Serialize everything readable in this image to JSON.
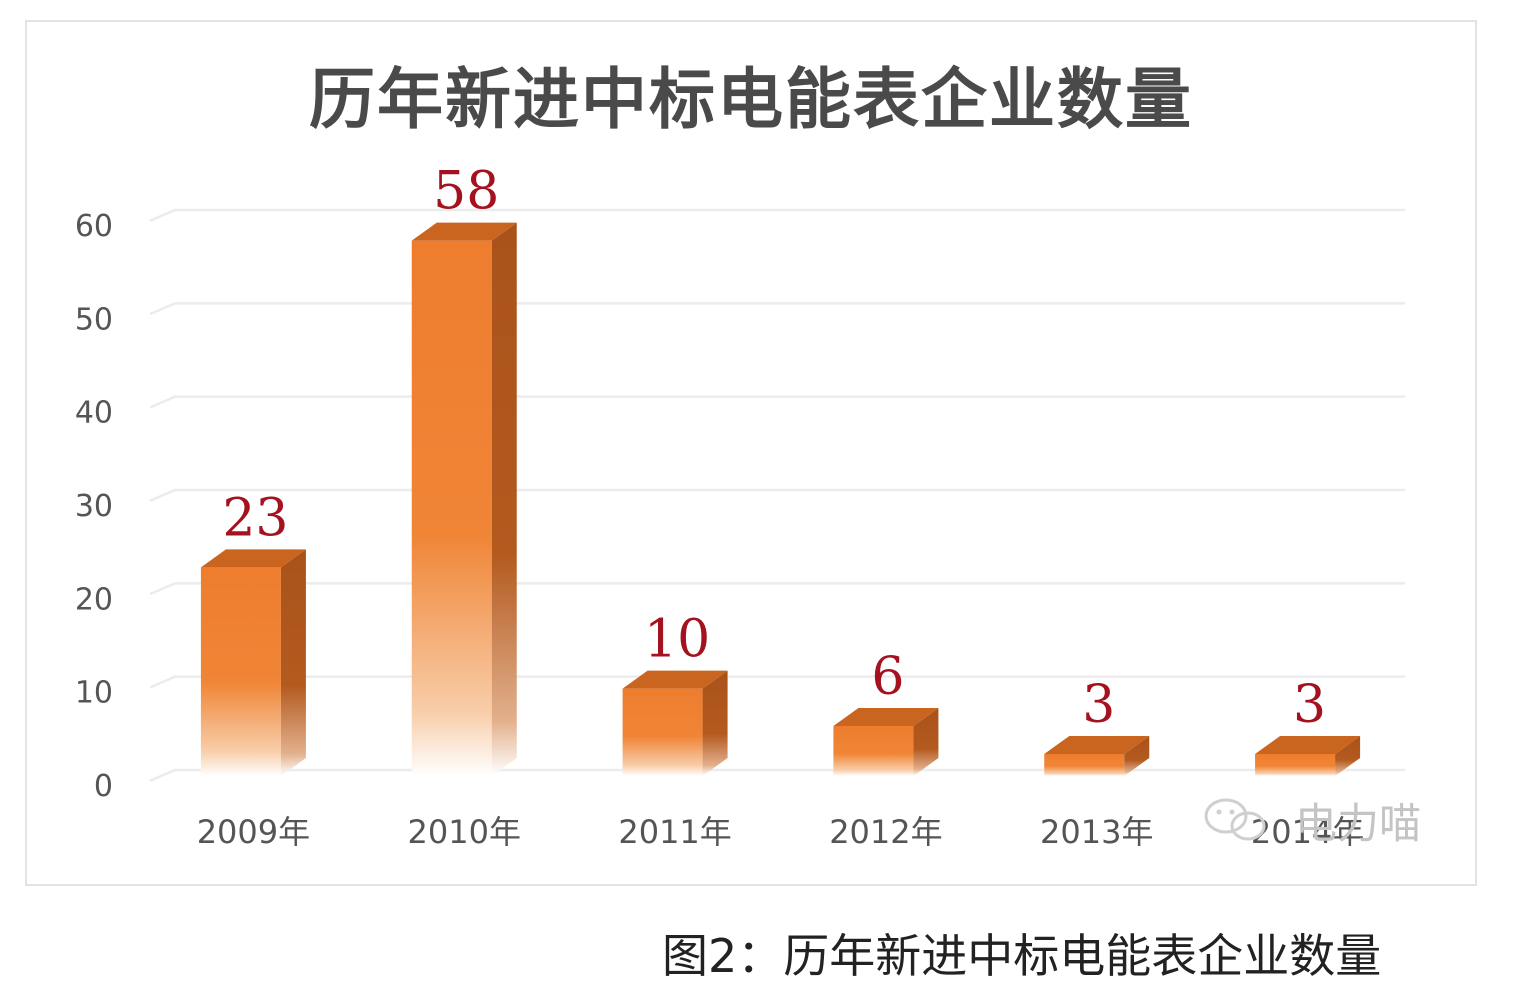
{
  "chart_data": {
    "type": "bar",
    "title": "历年新进中标电能表企业数量",
    "categories": [
      "2009年",
      "2010年",
      "2011年",
      "2012年",
      "2013年",
      "2014年"
    ],
    "values": [
      23,
      58,
      10,
      6,
      3,
      3
    ],
    "data_labels": [
      "23",
      "58",
      "10",
      "6",
      "3",
      "3"
    ],
    "xlabel": "",
    "ylabel": "",
    "ylim": [
      0,
      60
    ],
    "yticks": [
      "0",
      "10",
      "20",
      "30",
      "40",
      "50",
      "60"
    ],
    "grid": true,
    "legend": "none",
    "style": "3d-column",
    "colors": {
      "bar_front": "#ee7d2e",
      "bar_side": "#a9521a",
      "bar_top": "#c9651f",
      "data_label": "#a5121f",
      "gridline": "#ececec",
      "tick_label": "#555555"
    }
  },
  "watermark": {
    "text": "电力喵",
    "icon": "wechat-icon"
  },
  "caption": "图2：历年新进中标电能表企业数量"
}
